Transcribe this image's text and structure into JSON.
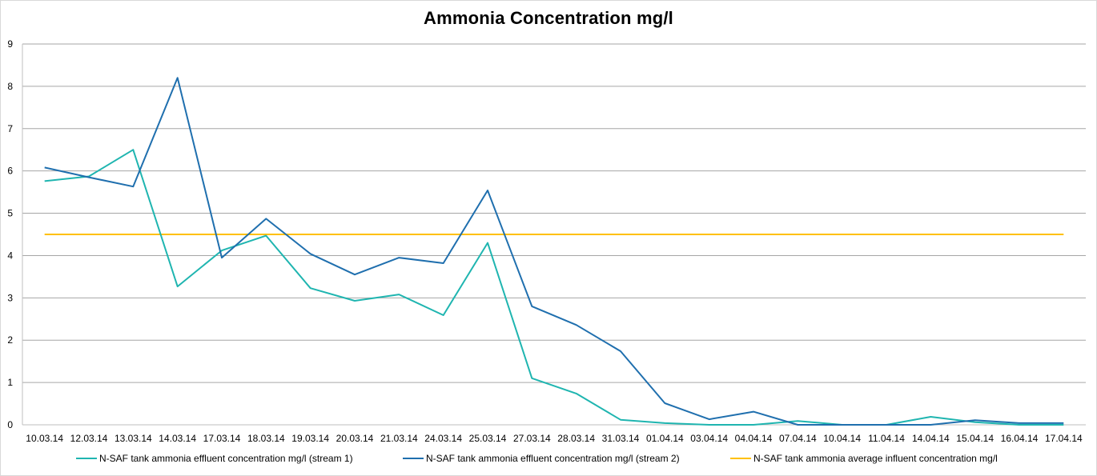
{
  "chart_data": {
    "type": "line",
    "title": "Ammonia Concentration mg/l",
    "xlabel": "",
    "ylabel": "",
    "ylim": [
      0,
      9
    ],
    "yticks": [
      "0",
      "1",
      "2",
      "3",
      "4",
      "5",
      "6",
      "7",
      "8",
      "9"
    ],
    "grid": true,
    "legend_position": "bottom",
    "categories": [
      "10.03.14",
      "12.03.14",
      "13.03.14",
      "14.03.14",
      "17.03.14",
      "18.03.14",
      "19.03.14",
      "20.03.14",
      "21.03.14",
      "24.03.14",
      "25.03.14",
      "27.03.14",
      "28.03.14",
      "31.03.14",
      "01.04.14",
      "03.04.14",
      "04.04.14",
      "07.04.14",
      "10.04.14",
      "11.04.14",
      "14.04.14",
      "15.04.14",
      "16.04.14",
      "17.04.14"
    ],
    "series": [
      {
        "name": "N-SAF tank ammonia effluent concentration mg/l (stream 1)",
        "color": "#1fb5b0",
        "values": [
          5.76,
          5.87,
          6.5,
          3.27,
          4.12,
          4.47,
          3.23,
          2.93,
          3.08,
          2.59,
          4.3,
          1.1,
          0.74,
          0.12,
          0.04,
          0.0,
          0.0,
          0.09,
          0.0,
          0.0,
          0.19,
          0.06,
          0.0,
          0.0
        ]
      },
      {
        "name": "N-SAF tank ammonia effluent concentration mg/l (stream 2)",
        "color": "#1f6fae",
        "values": [
          6.08,
          5.85,
          5.63,
          8.2,
          3.95,
          4.87,
          4.04,
          3.55,
          3.95,
          3.82,
          5.54,
          2.8,
          2.36,
          1.74,
          0.51,
          0.13,
          0.31,
          0.0,
          0.0,
          0.0,
          0.0,
          0.11,
          0.04,
          0.04
        ]
      },
      {
        "name": "N-SAF tank ammonia average influent concentration mg/l",
        "color": "#ffc000",
        "values": [
          4.5,
          4.5,
          4.5,
          4.5,
          4.5,
          4.5,
          4.5,
          4.5,
          4.5,
          4.5,
          4.5,
          4.5,
          4.5,
          4.5,
          4.5,
          4.5,
          4.5,
          4.5,
          4.5,
          4.5,
          4.5,
          4.5,
          4.5,
          4.5
        ]
      }
    ]
  }
}
